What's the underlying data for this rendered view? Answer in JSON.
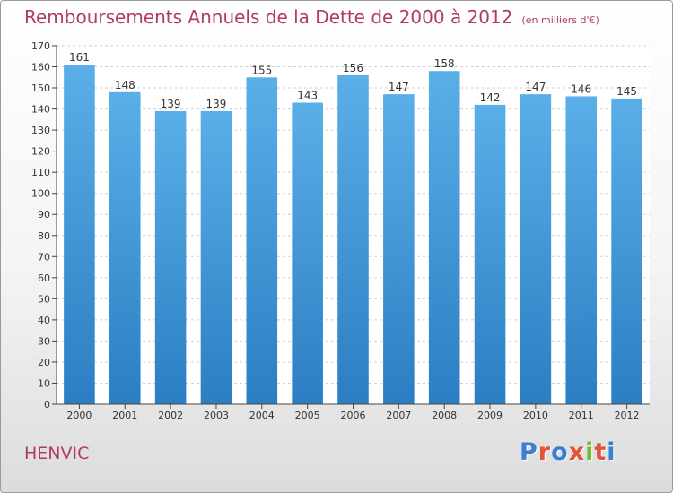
{
  "title": "Remboursements Annuels de la Dette de 2000 à 2012",
  "subtitle": "(en milliers d'€)",
  "place": "HENVIC",
  "logo": {
    "text": "Proxiti",
    "colors": [
      "#3a7fd0",
      "#e0553a",
      "#3a7fd0",
      "#e0553a",
      "#7bb833",
      "#e0553a",
      "#3a7fd0"
    ]
  },
  "chart_data": {
    "type": "bar",
    "categories": [
      "2000",
      "2001",
      "2002",
      "2003",
      "2004",
      "2005",
      "2006",
      "2007",
      "2008",
      "2009",
      "2010",
      "2011",
      "2012"
    ],
    "values": [
      161,
      148,
      139,
      139,
      155,
      143,
      156,
      147,
      158,
      142,
      147,
      146,
      145
    ],
    "data_labels": [
      "161",
      "148",
      "139",
      "139",
      "155",
      "143",
      "156",
      "147",
      "158",
      "142",
      "147",
      "146",
      "145"
    ],
    "ylim": [
      0,
      170
    ],
    "yticks": [
      "0",
      "10",
      "20",
      "30",
      "40",
      "50",
      "60",
      "70",
      "80",
      "90",
      "100",
      "110",
      "120",
      "130",
      "140",
      "150",
      "160",
      "170"
    ],
    "grid": true,
    "bar_color_top": "#5aafe8",
    "bar_color_bottom": "#2b7ec2"
  }
}
